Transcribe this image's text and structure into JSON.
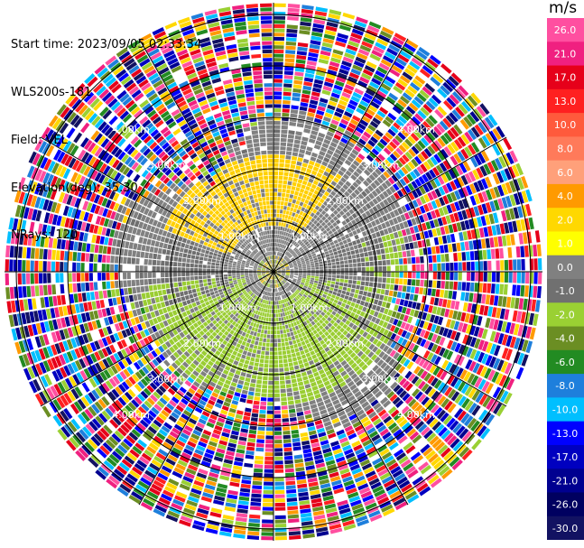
{
  "header": {
    "start_time": "Start time: 2023/09/05 02:33:34",
    "instrument": "WLS200s-181",
    "field": "Field: VEL",
    "elevation": "Elevation(deg): 35.30",
    "nrays": "NRays: 120"
  },
  "ring_labels": [
    "1.00km",
    "2.00km",
    "3.00km",
    "4.00km"
  ],
  "colorbar": {
    "unit": "m/s",
    "ticks": [
      "26.0",
      "21.0",
      "17.0",
      "13.0",
      "10.0",
      "8.0",
      "6.0",
      "4.0",
      "2.0",
      "1.0",
      "0.0",
      "-1.0",
      "-2.0",
      "-4.0",
      "-6.0",
      "-8.0",
      "-10.0",
      "-13.0",
      "-17.0",
      "-21.0",
      "-26.0",
      "-30.0"
    ],
    "colors": [
      "#ff4fa0",
      "#f02080",
      "#e6001a",
      "#ff2020",
      "#ff5a3c",
      "#ff7a5a",
      "#ffa07a",
      "#ff9a00",
      "#ffd800",
      "#ffff00",
      "#808080",
      "#707070",
      "#9ad033",
      "#6b8e23",
      "#228b22",
      "#1e7fdc",
      "#00bfff",
      "#0000ff",
      "#0000c0",
      "#000090",
      "#000060",
      "#121262"
    ]
  },
  "legend_bands": {
    "gray": "#808080",
    "dark_gray": "#6e6e6e",
    "yellow": "#ffd000",
    "green": "#9acd32"
  }
}
